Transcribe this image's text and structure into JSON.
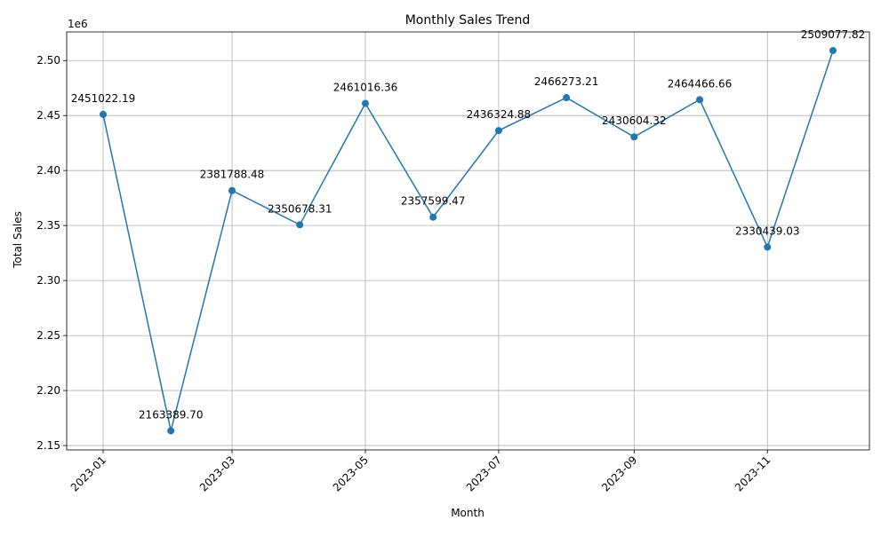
{
  "chart_data": {
    "type": "line",
    "title": "Monthly Sales Trend",
    "xlabel": "Month",
    "ylabel": "Total Sales",
    "y_offset_label": "1e6",
    "x": [
      "2023-01",
      "2023-02",
      "2023-03",
      "2023-04",
      "2023-05",
      "2023-06",
      "2023-07",
      "2023-08",
      "2023-09",
      "2023-10",
      "2023-11",
      "2023-12"
    ],
    "values": [
      2451022.19,
      2163389.7,
      2381788.48,
      2350678.31,
      2461016.36,
      2357599.47,
      2436324.88,
      2466273.21,
      2430604.32,
      2464466.66,
      2330439.03,
      2509077.82
    ],
    "data_labels": [
      "2451022.19",
      "2163389.70",
      "2381788.48",
      "2350678.31",
      "2461016.36",
      "2357599.47",
      "2436324.88",
      "2466273.21",
      "2430604.32",
      "2464466.66",
      "2330439.03",
      "2509077.82"
    ],
    "x_ticks": [
      {
        "month": "2023-01",
        "label": "2023-01"
      },
      {
        "month": "2023-03",
        "label": "2023-03"
      },
      {
        "month": "2023-05",
        "label": "2023-05"
      },
      {
        "month": "2023-07",
        "label": "2023-07"
      },
      {
        "month": "2023-09",
        "label": "2023-09"
      },
      {
        "month": "2023-11",
        "label": "2023-11"
      }
    ],
    "y_ticks": [
      {
        "value": 2150000,
        "label": "2.15"
      },
      {
        "value": 2200000,
        "label": "2.20"
      },
      {
        "value": 2250000,
        "label": "2.25"
      },
      {
        "value": 2300000,
        "label": "2.30"
      },
      {
        "value": 2350000,
        "label": "2.35"
      },
      {
        "value": 2400000,
        "label": "2.40"
      },
      {
        "value": 2450000,
        "label": "2.45"
      },
      {
        "value": 2500000,
        "label": "2.50"
      }
    ],
    "ylim": [
      2146000,
      2526000
    ],
    "grid": true,
    "legend": false,
    "line_color": "#1f77b4",
    "grid_color": "#b0b0b0"
  }
}
